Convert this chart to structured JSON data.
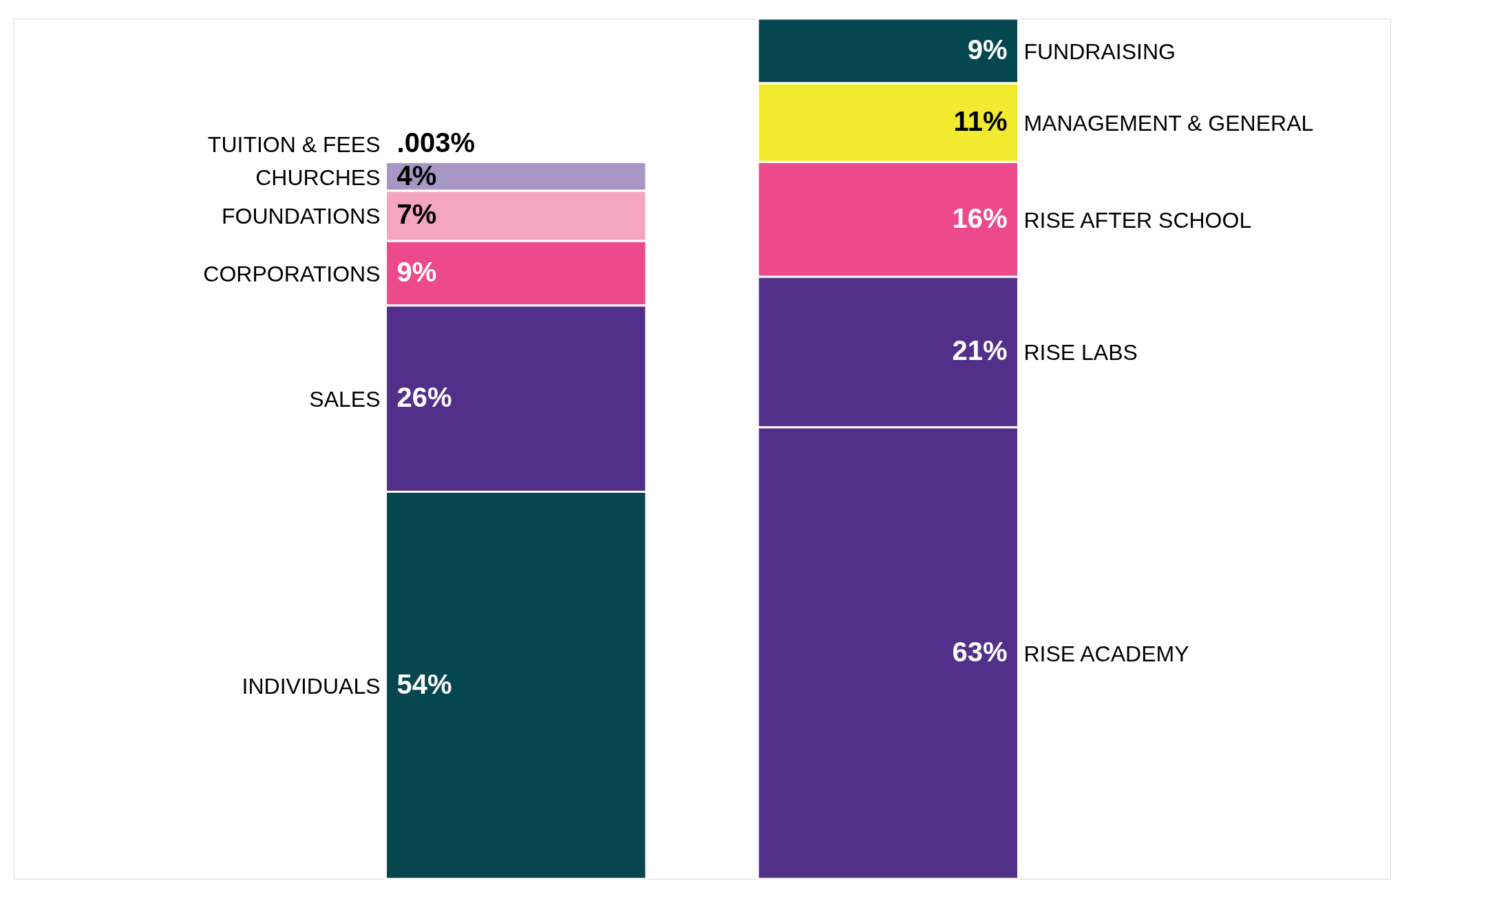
{
  "chart_data": {
    "type": "bar",
    "stacked": true,
    "categories": [
      null,
      null
    ],
    "series": [
      {
        "name": "INDIVIDUALS",
        "color": "#05464f",
        "values": [
          54,
          null
        ],
        "value_labels": [
          "54%",
          null
        ]
      },
      {
        "name": "SALES",
        "color": "#52308a",
        "values": [
          26,
          null
        ],
        "value_labels": [
          "26%",
          null
        ]
      },
      {
        "name": "CORPORATIONS",
        "color": "#ec4a8b",
        "values": [
          9,
          null
        ],
        "value_labels": [
          "9%",
          null
        ]
      },
      {
        "name": "FOUNDATIONS",
        "color": "#f4a5c0",
        "values": [
          7,
          null
        ],
        "value_labels": [
          "7%",
          null
        ]
      },
      {
        "name": "CHURCHES",
        "color": "#a896c5",
        "values": [
          4,
          null
        ],
        "value_labels": [
          "4%",
          null
        ]
      },
      {
        "name": "TUITION & FEES",
        "color": "#f2ea2e",
        "values": [
          0.003,
          null
        ],
        "value_labels": [
          ".003%",
          null
        ]
      },
      {
        "name": "RISE ACADEMY",
        "color": "#52308a",
        "values": [
          null,
          63
        ],
        "value_labels": [
          null,
          "63%"
        ]
      },
      {
        "name": "RISE LABS",
        "color": "#52308a",
        "values": [
          null,
          21
        ],
        "value_labels": [
          null,
          "21%"
        ]
      },
      {
        "name": "RISE AFTER SCHOOL",
        "color": "#ec4a8b",
        "values": [
          null,
          16
        ],
        "value_labels": [
          null,
          "16%"
        ]
      },
      {
        "name": "MANAGEMENT & GENERAL",
        "color": "#f2ea2e",
        "values": [
          null,
          11
        ],
        "value_labels": [
          null,
          "11%"
        ]
      },
      {
        "name": "FUNDRAISING",
        "color": "#05464f",
        "values": [
          null,
          9
        ],
        "value_labels": [
          null,
          "9%"
        ]
      }
    ]
  }
}
